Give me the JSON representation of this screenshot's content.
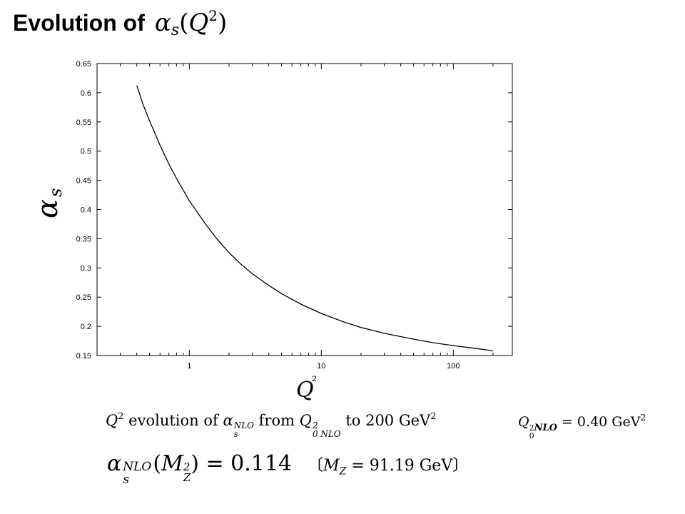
{
  "slide": {
    "title_text": "Evolution of",
    "title_math": {
      "symbol": "α",
      "sub": "s",
      "open": "(",
      "var": "Q",
      "sup": "2",
      "close": ")"
    }
  },
  "chart_data": {
    "type": "line",
    "x_scale": "log",
    "xlim": [
      0.2,
      280
    ],
    "ylim": [
      0.15,
      0.65
    ],
    "xlabel": "Q²",
    "ylabel": "αs",
    "xticks_major": [
      1,
      10,
      100
    ],
    "xtick_labels": [
      "1",
      "10",
      "100"
    ],
    "yticks": [
      0.15,
      0.2,
      0.25,
      0.3,
      0.35,
      0.4,
      0.45,
      0.5,
      0.55,
      0.6,
      0.65
    ],
    "ytick_labels": [
      "0.15",
      "0.2",
      "0.25",
      "0.3",
      "0.35",
      "0.4",
      "0.45",
      "0.5",
      "0.55",
      "0.6",
      "0.65"
    ],
    "grid": false,
    "line_color": "#000000",
    "series": [
      {
        "x": [
          0.4,
          0.45,
          0.5,
          0.6,
          0.7,
          0.8,
          1.0,
          1.3,
          1.6,
          2.0,
          2.5,
          3.0,
          4.0,
          5.0,
          7.0,
          10,
          15,
          20,
          30,
          50,
          70,
          100,
          150,
          200
        ],
        "y": [
          0.612,
          0.578,
          0.552,
          0.51,
          0.478,
          0.453,
          0.415,
          0.378,
          0.351,
          0.326,
          0.305,
          0.29,
          0.27,
          0.256,
          0.238,
          0.222,
          0.207,
          0.198,
          0.188,
          0.178,
          0.172,
          0.167,
          0.162,
          0.158
        ]
      }
    ]
  },
  "caption": {
    "q": "Q",
    "q_sup": "2",
    "text1": " evolution of ",
    "alpha": "α",
    "alpha_sup": "NLO",
    "alpha_sub": "s",
    "text2": " from ",
    "q0": "Q",
    "q0_sup": "2",
    "q0_sub": "0 NLO",
    "text3": " to 200 GeV",
    "gev_sup": "2"
  },
  "side_note": {
    "q": "Q",
    "sup": "2",
    "sub": "0",
    "nlo": "NLO",
    "value": " = 0.40 GeV",
    "unit_sup": "2"
  },
  "formula": {
    "alpha": "α",
    "alpha_sup": "NLO",
    "alpha_sub": "s",
    "open": "(",
    "m": "M",
    "m_sup": "2",
    "m_sub": "Z",
    "rest": ") = 0.114",
    "note_open": "〔",
    "note_m": "M",
    "note_sub": "Z",
    "note_value": " = 91.19 GeV",
    "note_close": "〕"
  }
}
